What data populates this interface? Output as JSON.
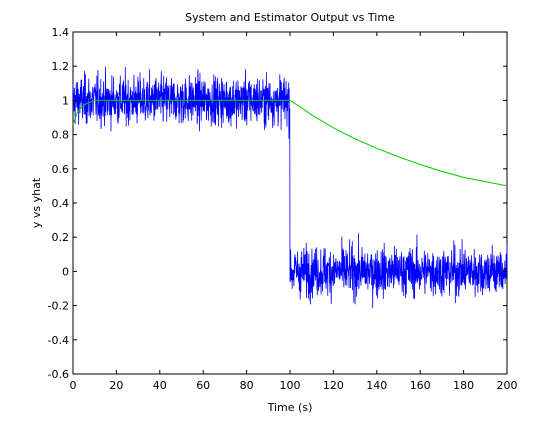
{
  "chart_data": {
    "type": "line",
    "title": "System and Estimator Output vs Time",
    "xlabel": "Time (s)",
    "ylabel": "y vs yhat",
    "xlim": [
      0,
      200
    ],
    "ylim": [
      -0.6,
      1.4
    ],
    "xticks": [
      0,
      20,
      40,
      60,
      80,
      100,
      120,
      140,
      160,
      180,
      200
    ],
    "yticks": [
      -0.6,
      -0.4,
      -0.2,
      0,
      0.2,
      0.4,
      0.6,
      0.8,
      1,
      1.2,
      1.4
    ],
    "grid": false,
    "legend": "none",
    "series": [
      {
        "color": "#0000ff",
        "kind": "noisy-step",
        "description_values": {
          "segment_1": {
            "x_range": [
              0,
              100
            ],
            "mean": 1.0,
            "min": 0.64,
            "max": 1.34
          },
          "segment_2": {
            "x_range": [
              100,
              200
            ],
            "mean": 0.0,
            "min": -0.42,
            "max": 0.34
          },
          "step_at_x": 100
        }
      },
      {
        "color": "#00cc00",
        "kind": "estimate",
        "points": [
          [
            0,
            0.86
          ],
          [
            2,
            0.93
          ],
          [
            4,
            0.96
          ],
          [
            6,
            0.98
          ],
          [
            8,
            0.99
          ],
          [
            10,
            1.0
          ],
          [
            20,
            1.0
          ],
          [
            40,
            1.0
          ],
          [
            60,
            1.0
          ],
          [
            80,
            1.0
          ],
          [
            100,
            1.0
          ],
          [
            105,
            0.96
          ],
          [
            110,
            0.915
          ],
          [
            120,
            0.84
          ],
          [
            130,
            0.775
          ],
          [
            140,
            0.72
          ],
          [
            150,
            0.67
          ],
          [
            160,
            0.625
          ],
          [
            170,
            0.585
          ],
          [
            180,
            0.55
          ],
          [
            190,
            0.525
          ],
          [
            200,
            0.5
          ]
        ]
      }
    ]
  }
}
